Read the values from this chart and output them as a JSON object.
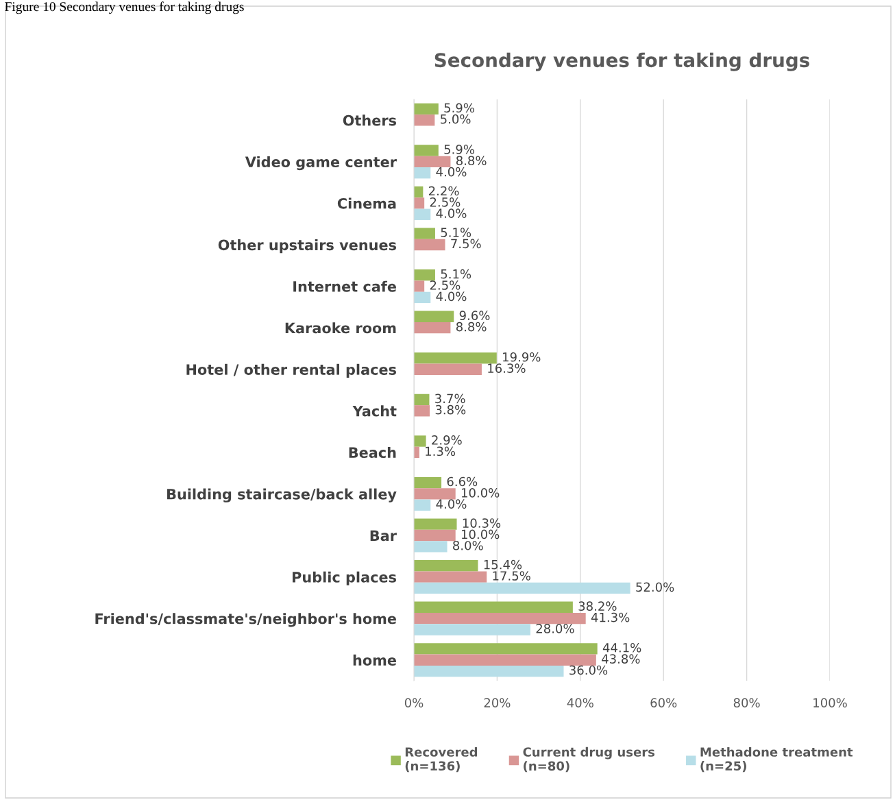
{
  "chart_data": {
    "type": "bar",
    "orientation": "horizontal",
    "title": "Secondary venues for taking drugs",
    "annotations": [
      "Figure 10 Secondary venues for taking drugs"
    ],
    "categories": [
      "Others",
      "Video game center",
      "Cinema",
      "Other upstairs venues",
      "Internet cafe",
      "Karaoke room",
      "Hotel / other rental places",
      "Yacht",
      "Beach",
      "Building staircase/back alley",
      "Bar",
      "Public places",
      "Friend's/classmate's/neighbor's home",
      "home"
    ],
    "series": [
      {
        "name": "Recovered\n(n=136)",
        "color": "#9bbb59",
        "values": [
          5.9,
          5.9,
          2.2,
          5.1,
          5.1,
          9.6,
          19.9,
          3.7,
          2.9,
          6.6,
          10.3,
          15.4,
          38.2,
          44.1
        ],
        "value_labels": [
          "5.9%",
          "5.9%",
          "2.2%",
          "5.1%",
          "5.1%",
          "9.6%",
          "19.9%",
          "3.7%",
          "2.9%",
          "6.6%",
          "10.3%",
          "15.4%",
          "38.2%",
          "44.1%"
        ]
      },
      {
        "name": "Current drug users\n(n=80)",
        "color": "#d99694",
        "values": [
          5.0,
          8.8,
          2.5,
          7.5,
          2.5,
          8.8,
          16.3,
          3.8,
          1.3,
          10.0,
          10.0,
          17.5,
          41.3,
          43.8
        ],
        "value_labels": [
          "5.0%",
          "8.8%",
          "2.5%",
          "7.5%",
          "2.5%",
          "8.8%",
          "16.3%",
          "3.8%",
          "1.3%",
          "10.0%",
          "10.0%",
          "17.5%",
          "41.3%",
          "43.8%"
        ]
      },
      {
        "name": "Methadone treatment\n(n=25)",
        "color": "#b7dee8",
        "values": [
          null,
          4.0,
          4.0,
          null,
          4.0,
          null,
          null,
          null,
          null,
          4.0,
          8.0,
          52.0,
          28.0,
          36.0
        ],
        "value_labels": [
          null,
          "4.0%",
          "4.0%",
          null,
          "4.0%",
          null,
          null,
          null,
          null,
          "4.0%",
          "8.0%",
          "52.0%",
          "28.0%",
          "36.0%"
        ]
      }
    ],
    "xlim": [
      0,
      100
    ],
    "xticks": [
      {
        "value": 0,
        "label": "0%"
      },
      {
        "value": 20,
        "label": "20%"
      },
      {
        "value": 40,
        "label": "40%"
      },
      {
        "value": 60,
        "label": "60%"
      },
      {
        "value": 80,
        "label": "80%"
      },
      {
        "value": 100,
        "label": "100%"
      }
    ],
    "grid": "x",
    "legend": "bottom"
  }
}
